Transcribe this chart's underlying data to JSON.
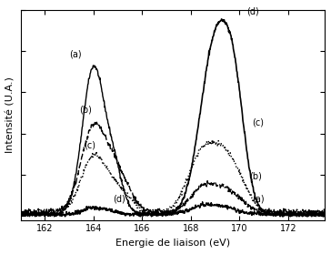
{
  "xlabel": "Energie de liaison (eV)",
  "ylabel": "Intensité (U.A.)",
  "xlim": [
    161,
    173.5
  ],
  "ylim": [
    -0.02,
    1.0
  ],
  "x_ticks": [
    162,
    164,
    166,
    168,
    170,
    172
  ],
  "curves": {
    "a_label": "(a)",
    "b_label": "(b)",
    "c_label": "(c)",
    "d_label": "(d)"
  },
  "line_styles": {
    "a": "solid",
    "b": "dashed",
    "c": "dotted",
    "d": "solid"
  },
  "line_widths": {
    "a": 1.0,
    "b": 1.0,
    "c": 1.0,
    "d": 1.2
  },
  "colors": {
    "a": "#000000",
    "b": "#000000",
    "c": "#000000",
    "d": "#000000"
  }
}
